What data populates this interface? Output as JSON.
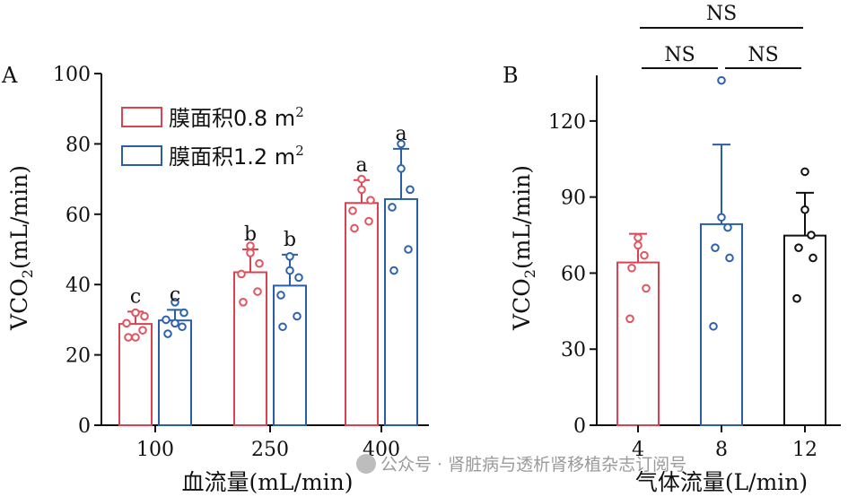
{
  "colors": {
    "red": "#d9434f",
    "blue": "#2a5ea8",
    "black": "#111111",
    "marker_red": "#e05560",
    "marker_blue": "#2d62ae"
  },
  "watermark": "公众号 · 肾脏病与透析肾移植杂志订阅号",
  "chart_data": [
    {
      "panel": "A",
      "type": "bar",
      "xlabel": "血流量(mL/min)",
      "ylabel_main": "VCO",
      "ylabel_sub": "2",
      "ylabel_unit": "(mL/min)",
      "ylim": [
        0,
        100
      ],
      "yticks": [
        "0",
        "20",
        "40",
        "60",
        "80",
        "100"
      ],
      "ytick_values": [
        0,
        20,
        40,
        60,
        80,
        100
      ],
      "categories": [
        "100",
        "250",
        "400"
      ],
      "legend_position": "top-left",
      "series": [
        {
          "name": "膜面积0.8 m",
          "name_sup": "2",
          "color_key": "red",
          "values": [
            28.8,
            43.5,
            63.2
          ],
          "errors": [
            3.5,
            6.5,
            6.5
          ],
          "letters": [
            "c",
            "b",
            "a"
          ],
          "points": [
            [
              25,
              27,
              29,
              31,
              32,
              25
            ],
            [
              35,
              38,
              43,
              46,
              51,
              49
            ],
            [
              56,
              58,
              61,
              64,
              67,
              70
            ]
          ]
        },
        {
          "name": "膜面积1.2 m",
          "name_sup": "2",
          "color_key": "blue",
          "values": [
            29.8,
            39.7,
            64.3
          ],
          "errors": [
            3.0,
            8.8,
            14.3
          ],
          "letters": [
            "c",
            "b",
            "a"
          ],
          "points": [
            [
              26,
              28,
              30,
              32,
              35,
              29
            ],
            [
              28,
              31,
              37,
              42,
              44,
              48
            ],
            [
              44,
              50,
              62,
              67,
              73,
              80
            ]
          ]
        }
      ]
    },
    {
      "panel": "B",
      "type": "bar",
      "xlabel": "气体流量(L/min)",
      "ylabel_main": "VCO",
      "ylabel_sub": "2",
      "ylabel_unit": "(mL/min)",
      "ylim": [
        0,
        138
      ],
      "yticks": [
        "0",
        "30",
        "60",
        "90",
        "120"
      ],
      "ytick_values": [
        0,
        30,
        60,
        90,
        120
      ],
      "categories": [
        "4",
        "8",
        "12"
      ],
      "colors": [
        "red",
        "blue",
        "black"
      ],
      "values": [
        64.2,
        79.3,
        74.8
      ],
      "errors": [
        11.3,
        31.4,
        16.9
      ],
      "points": [
        [
          42,
          54,
          62,
          67,
          71,
          74
        ],
        [
          39,
          66,
          70,
          78,
          82,
          136
        ],
        [
          50,
          66,
          70,
          75,
          85,
          100
        ]
      ],
      "comparisons": [
        {
          "between": [
            "4",
            "8"
          ],
          "label": "NS"
        },
        {
          "between": [
            "8",
            "12"
          ],
          "label": "NS"
        },
        {
          "between": [
            "4",
            "12"
          ],
          "label": "NS"
        }
      ]
    }
  ]
}
